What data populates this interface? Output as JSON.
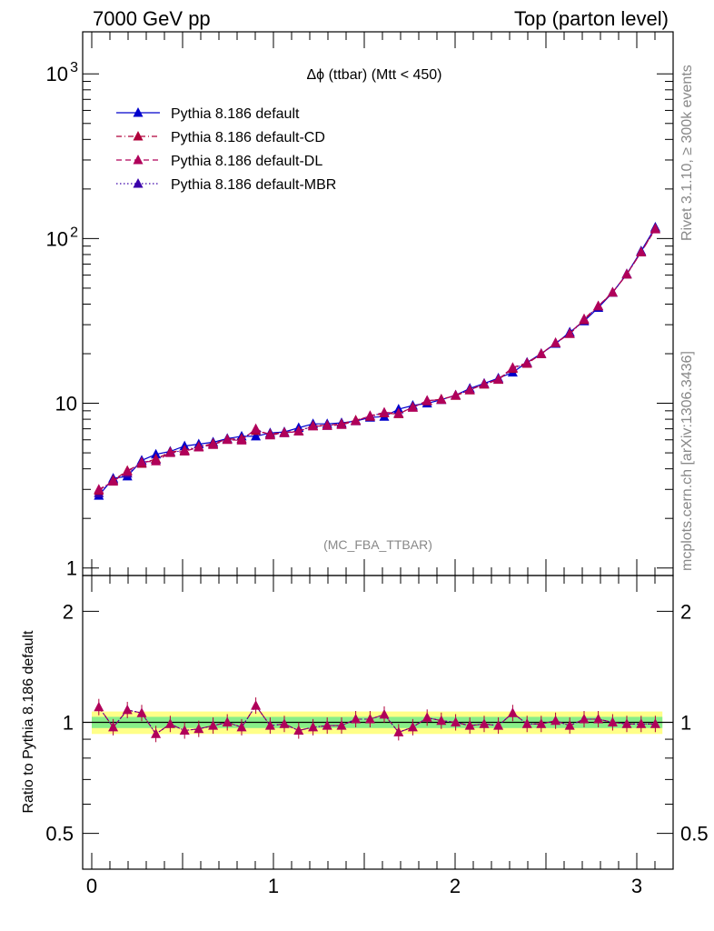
{
  "header": {
    "left": "7000 GeV pp",
    "right": "Top (parton level)"
  },
  "side_text": {
    "rivet": "Rivet 3.1.10, ≥ 300k events",
    "mcplots": "mcplots.cern.ch [arXiv:1306.3436]"
  },
  "plot_title": "Δϕ (ttbar) (Mtt < 450)",
  "analysis_tag": "(MC_FBA_TTBAR)",
  "ratio_ylabel": "Ratio to Pythia 8.186 default",
  "colors": {
    "default": "#0000cc",
    "cd": "#b0003a",
    "dl": "#b0005a",
    "mbr": "#3a00aa",
    "band_yellow": "#ffff88",
    "band_green": "#88ee88"
  },
  "chart_data": [
    {
      "type": "line",
      "yscale": "log",
      "xlim": [
        -0.05,
        3.2
      ],
      "ylim": [
        0.9,
        1800
      ],
      "y_tick_labels": [
        "1",
        "10",
        "10^2",
        "10^3"
      ],
      "x": [
        0.039,
        0.118,
        0.196,
        0.275,
        0.353,
        0.432,
        0.511,
        0.589,
        0.668,
        0.746,
        0.825,
        0.903,
        0.982,
        1.06,
        1.139,
        1.218,
        1.296,
        1.375,
        1.453,
        1.532,
        1.61,
        1.689,
        1.767,
        1.846,
        1.924,
        2.003,
        2.081,
        2.16,
        2.238,
        2.317,
        2.396,
        2.474,
        2.553,
        2.631,
        2.71,
        2.788,
        2.867,
        2.945,
        3.024,
        3.102
      ],
      "series": [
        {
          "name": "Pythia 8.186 default",
          "style": "solid",
          "values": [
            2.75,
            3.5,
            3.6,
            4.5,
            4.9,
            5.1,
            5.5,
            5.65,
            5.8,
            6.1,
            6.3,
            6.3,
            6.6,
            6.7,
            7.1,
            7.5,
            7.5,
            7.6,
            7.8,
            8.2,
            8.3,
            9.2,
            9.7,
            10.0,
            10.5,
            11.2,
            12.3,
            13.2,
            14.2,
            15.4,
            17.7,
            20.0,
            23.0,
            27.0,
            31.5,
            38.0,
            47.0,
            61.0,
            84.0,
            117.0
          ]
        },
        {
          "name": "Pythia 8.186 default-CD",
          "style": "dashdot",
          "values": [
            2.95,
            3.4,
            3.9,
            4.3,
            4.6,
            5.05,
            5.2,
            5.45,
            5.7,
            6.05,
            6.1,
            6.8,
            6.5,
            6.65,
            6.8,
            7.3,
            7.35,
            7.5,
            7.9,
            8.3,
            8.7,
            8.6,
            9.5,
            10.3,
            10.6,
            11.1,
            12.0,
            13.0,
            13.9,
            16.2,
            17.4,
            19.9,
            23.2,
            26.4,
            32.0,
            38.8,
            47.0,
            60.5,
            83.0,
            115.0
          ]
        },
        {
          "name": "Pythia 8.186 default-DL",
          "style": "dashed",
          "values": [
            3.0,
            3.35,
            3.85,
            4.4,
            4.45,
            5.0,
            5.1,
            5.4,
            5.6,
            6.0,
            5.95,
            7.0,
            6.4,
            6.6,
            6.75,
            7.25,
            7.3,
            7.4,
            7.8,
            8.4,
            8.8,
            8.7,
            9.4,
            10.4,
            10.5,
            11.2,
            12.1,
            13.1,
            14.0,
            16.5,
            17.6,
            20.0,
            23.3,
            26.5,
            32.5,
            39.0,
            47.2,
            60.8,
            82.5,
            114.0
          ]
        },
        {
          "name": "Pythia 8.186 default-MBR",
          "style": "dotted",
          "values": [
            2.85,
            3.45,
            3.75,
            4.35,
            4.55,
            5.05,
            5.15,
            5.45,
            5.65,
            6.05,
            6.05,
            6.9,
            6.45,
            6.6,
            6.75,
            7.3,
            7.3,
            7.45,
            7.85,
            8.35,
            8.75,
            8.65,
            9.45,
            10.35,
            10.55,
            11.15,
            12.05,
            13.05,
            13.95,
            16.3,
            17.5,
            19.95,
            23.2,
            26.5,
            32.2,
            38.9,
            47.1,
            60.6,
            82.8,
            114.5
          ]
        }
      ]
    },
    {
      "type": "line",
      "yscale": "log",
      "xlim": [
        -0.05,
        3.2
      ],
      "ylim": [
        0.4,
        2.5
      ],
      "xlabel": "",
      "ylabel": "Ratio to Pythia 8.186 default",
      "x_tick_labels": [
        "0",
        "1",
        "2",
        "3"
      ],
      "y_tick_labels": [
        "0.5",
        "1",
        "2"
      ],
      "band_yellow_half": 0.07,
      "band_green_half": 0.035,
      "ratio_values": [
        1.1,
        0.97,
        1.08,
        1.06,
        0.93,
        0.99,
        0.95,
        0.96,
        0.98,
        1.0,
        0.97,
        1.11,
        0.98,
        0.99,
        0.95,
        0.97,
        0.98,
        0.98,
        1.02,
        1.02,
        1.05,
        0.94,
        0.97,
        1.03,
        1.01,
        1.0,
        0.98,
        0.99,
        0.98,
        1.06,
        0.99,
        0.99,
        1.01,
        0.98,
        1.02,
        1.02,
        1.0,
        0.99,
        0.99,
        0.99
      ]
    }
  ]
}
